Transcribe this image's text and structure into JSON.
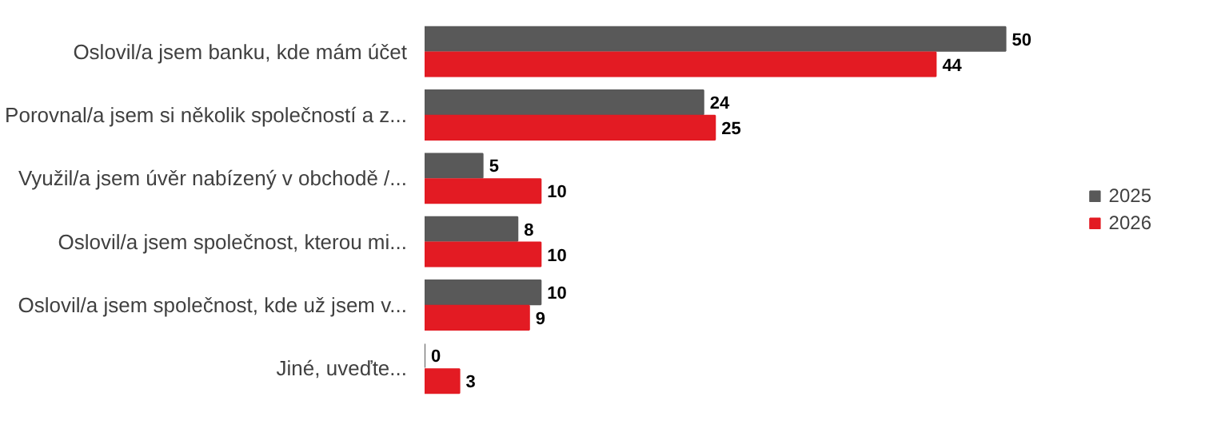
{
  "chart_data": {
    "type": "bar",
    "orientation": "horizontal",
    "categories": [
      "Oslovil/a jsem banku, kde mám účet",
      "Porovnal/a jsem si několik společností a z...",
      "Využil/a jsem úvěr nabízený v obchodě /...",
      "Oslovil/a jsem společnost, kterou mi...",
      "Oslovil/a jsem společnost, kde už jsem v...",
      "Jiné, uveďte..."
    ],
    "series": [
      {
        "name": "2025",
        "color": "#595959",
        "values": [
          50,
          24,
          5,
          8,
          10,
          0
        ]
      },
      {
        "name": "2026",
        "color": "#e31b23",
        "values": [
          44,
          25,
          10,
          10,
          9,
          3
        ]
      }
    ],
    "data_labels": true,
    "legend": "right",
    "grid": false,
    "tick_labels": "y"
  }
}
